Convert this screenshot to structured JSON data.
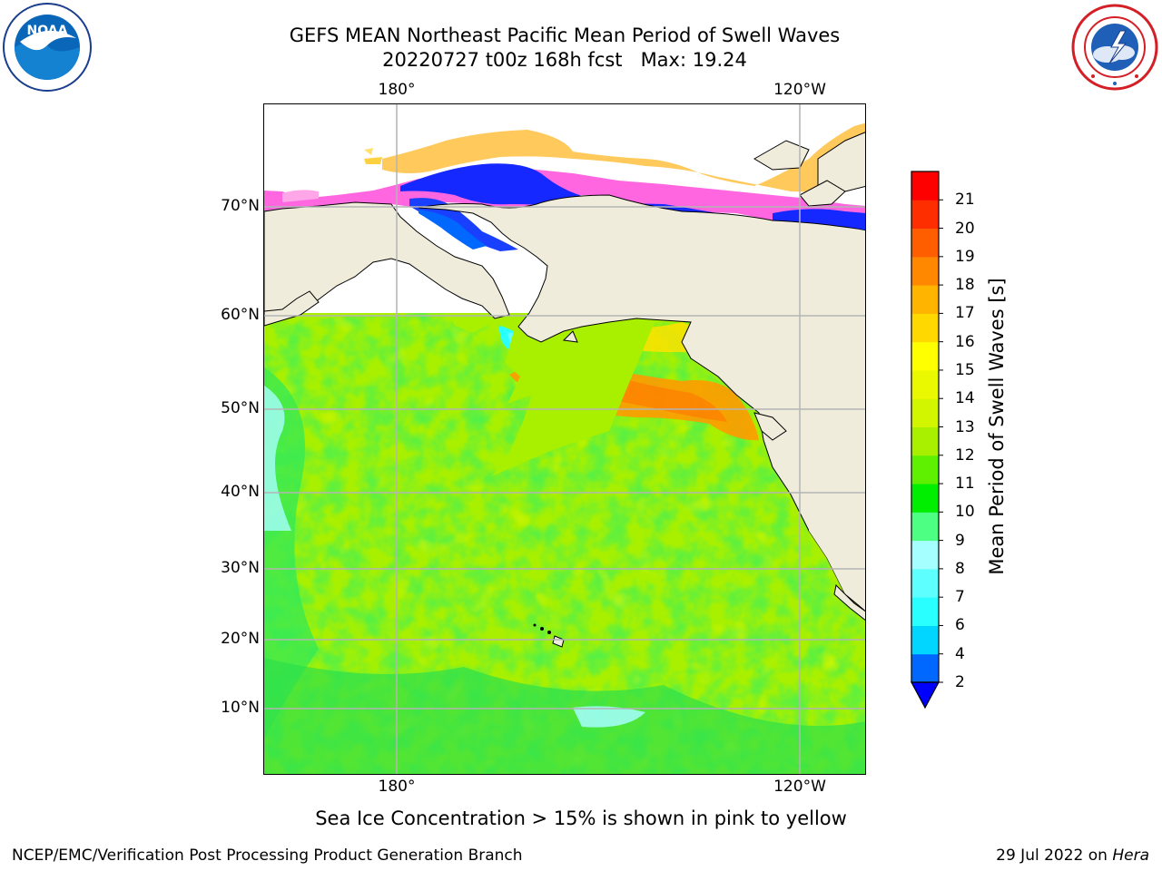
{
  "title": {
    "line1": "GEFS MEAN Northeast Pacific Mean Period of Swell Waves",
    "line2": "20220727 t00z 168h fcst   Max: 19.24"
  },
  "logos": {
    "noaa": {
      "icon": "noaa-logo",
      "text": "NOAA"
    },
    "nws": {
      "icon": "nws-logo"
    }
  },
  "map": {
    "projection": "plate-carree",
    "lon_ticks_top": [
      "180°",
      "120°W"
    ],
    "lon_ticks_bottom": [
      "180°",
      "120°W"
    ],
    "lat_ticks": [
      "70°N",
      "60°N",
      "50°N",
      "40°N",
      "30°N",
      "20°N",
      "10°N"
    ],
    "land_color": "#efecdc",
    "grid_color": "#b4b4b4"
  },
  "colorbar": {
    "label": "Mean Period of Swell Waves [s]",
    "levels": [
      "2",
      "4",
      "6",
      "7",
      "8",
      "9",
      "10",
      "11",
      "12",
      "13",
      "14",
      "15",
      "16",
      "17",
      "18",
      "19",
      "20",
      "21"
    ],
    "colors": [
      "#0068ff",
      "#00d6ff",
      "#2affff",
      "#5effff",
      "#a6ffff",
      "#4dff82",
      "#00ee00",
      "#5ef000",
      "#a8f000",
      "#d2f500",
      "#eaf800",
      "#ffff00",
      "#ffd800",
      "#ffb400",
      "#ff8800",
      "#ff5e00",
      "#ff2e00",
      "#ff0000"
    ],
    "under_color": "#0000ff",
    "extend": "min"
  },
  "caption": "Sea Ice Concentration > 15% is shown in pink to yellow",
  "footer": {
    "left": "NCEP/EMC/Verification Post Processing Product Generation Branch",
    "right_date": "29 Jul 2022 on ",
    "right_host": "Hera"
  }
}
